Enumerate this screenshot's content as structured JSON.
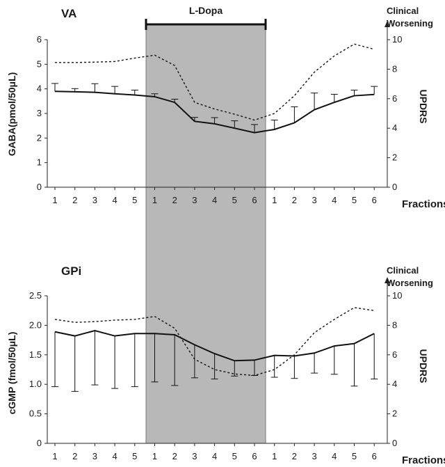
{
  "treatment_label": "L-Dopa",
  "x_label": "Fractions",
  "clinical_label_lines": [
    "Clinical",
    "Worsening"
  ],
  "colors": {
    "shade": "#b8b8b8",
    "shade_border": "#7a7a7a",
    "line": "#111111",
    "axis": "#222222"
  },
  "chart_data": [
    {
      "type": "line",
      "title": "VA",
      "x_ticks": [
        "1",
        "2",
        "3",
        "4",
        "5",
        "1",
        "2",
        "3",
        "4",
        "5",
        "6",
        "1",
        "2",
        "3",
        "4",
        "5",
        "6"
      ],
      "ylabel": "GABA(pmol/50μL)",
      "ylim": [
        0,
        6
      ],
      "y_ticks": [
        0,
        1,
        2,
        3,
        4,
        5,
        6
      ],
      "y2label": "UPDRS",
      "y2lim": [
        0,
        10
      ],
      "y2_ticks": [
        0,
        2,
        4,
        6,
        8,
        10
      ],
      "shaded_fractions": [
        6,
        11
      ],
      "series": [
        {
          "style": "solid",
          "axis": "left",
          "values": [
            3.9,
            3.88,
            3.86,
            3.8,
            3.75,
            3.68,
            3.45,
            2.68,
            2.58,
            2.4,
            2.22,
            2.35,
            2.62,
            3.15,
            3.45,
            3.72,
            3.77
          ],
          "error_upper": [
            0.32,
            0.13,
            0.35,
            0.3,
            0.2,
            0.12,
            0.13,
            0.16,
            0.25,
            0.3,
            0.33,
            0.38,
            0.65,
            0.68,
            0.33,
            0.23,
            0.33
          ]
        },
        {
          "style": "dotted",
          "axis": "right",
          "values": [
            8.45,
            8.45,
            8.48,
            8.52,
            8.75,
            8.95,
            8.25,
            5.75,
            5.3,
            4.95,
            4.55,
            5.0,
            6.2,
            7.8,
            8.9,
            9.7,
            9.35
          ]
        }
      ]
    },
    {
      "type": "line",
      "title": "GPi",
      "x_ticks": [
        "1",
        "2",
        "3",
        "4",
        "5",
        "1",
        "2",
        "3",
        "4",
        "5",
        "6",
        "1",
        "2",
        "3",
        "4",
        "5",
        "6"
      ],
      "ylabel": "cGMP (fmol/50μL)",
      "ylim": [
        0,
        2.5
      ],
      "y_ticks": [
        "0",
        "0.5",
        "1.0",
        "1.5",
        "2.0",
        "2.5"
      ],
      "y2label": "UPDRS",
      "y2lim": [
        0,
        10
      ],
      "y2_ticks": [
        0,
        2,
        4,
        6,
        8,
        10
      ],
      "shaded_fractions": [
        6,
        11
      ],
      "series": [
        {
          "style": "solid",
          "axis": "left",
          "values": [
            1.89,
            1.82,
            1.91,
            1.82,
            1.86,
            1.86,
            1.84,
            1.67,
            1.52,
            1.4,
            1.41,
            1.49,
            1.48,
            1.53,
            1.65,
            1.69,
            1.86
          ],
          "error_lower": [
            0.93,
            0.94,
            0.92,
            0.89,
            0.9,
            0.82,
            0.86,
            0.56,
            0.43,
            0.26,
            0.26,
            0.37,
            0.38,
            0.34,
            0.48,
            0.72,
            0.77
          ]
        },
        {
          "style": "dotted",
          "axis": "right",
          "values": [
            8.4,
            8.2,
            8.25,
            8.35,
            8.4,
            8.6,
            7.8,
            5.7,
            5.0,
            4.7,
            4.6,
            5.0,
            6.0,
            7.5,
            8.4,
            9.2,
            9.0
          ]
        }
      ]
    }
  ]
}
